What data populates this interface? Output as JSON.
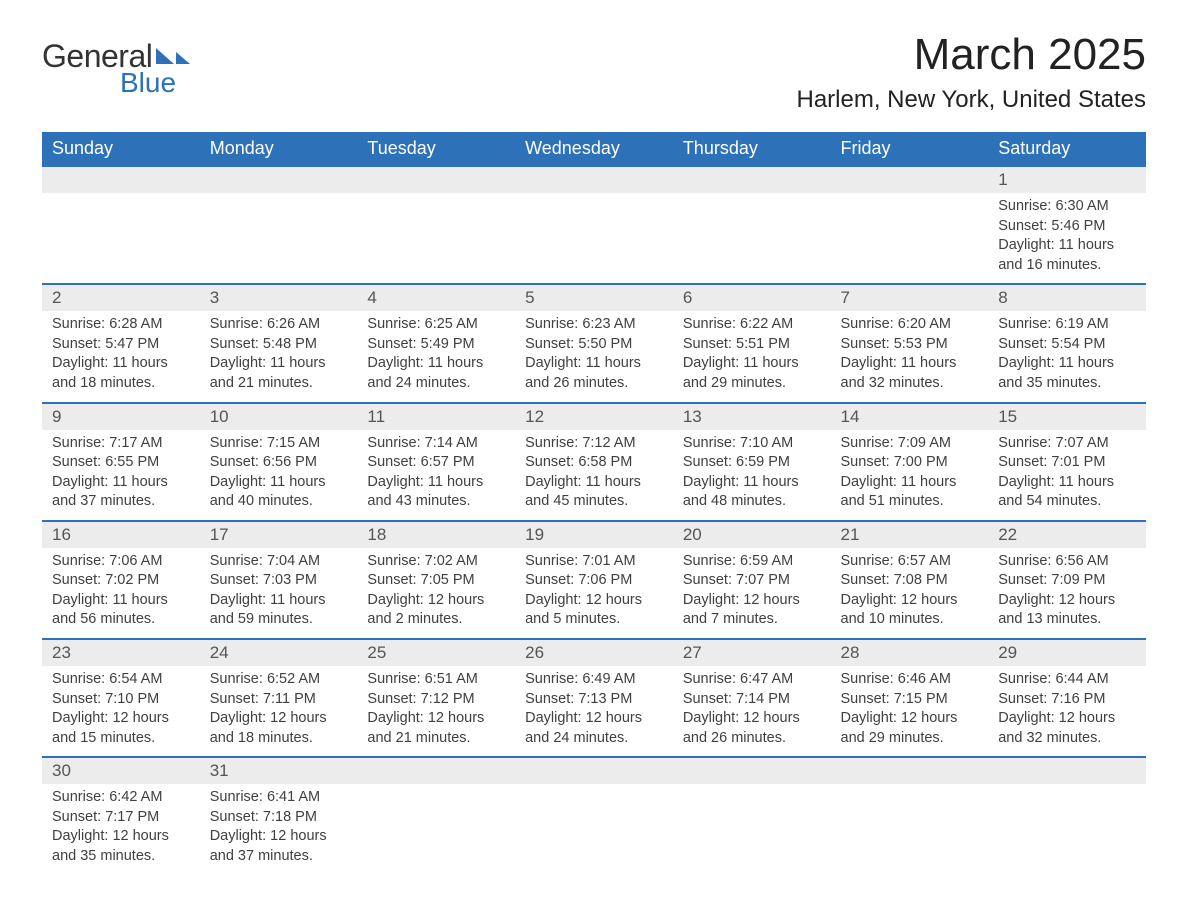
{
  "logo": {
    "text1": "General",
    "text2": "Blue",
    "shape_color": "#2d72b8"
  },
  "title": "March 2025",
  "location": "Harlem, New York, United States",
  "colors": {
    "header_bg": "#2d72b8",
    "header_text": "#ffffff",
    "daynum_bg": "#ececec",
    "week_border": "#2d72b8",
    "body_text": "#404040"
  },
  "typography": {
    "title_fontsize": 44,
    "location_fontsize": 24,
    "header_fontsize": 18,
    "daynum_fontsize": 17,
    "cell_fontsize": 14.5
  },
  "layout": {
    "columns": 7,
    "rows": 6,
    "start_day_index": 6
  },
  "weekdays": [
    "Sunday",
    "Monday",
    "Tuesday",
    "Wednesday",
    "Thursday",
    "Friday",
    "Saturday"
  ],
  "days": [
    {
      "n": "1",
      "sunrise": "6:30 AM",
      "sunset": "5:46 PM",
      "daylight": "11 hours and 16 minutes."
    },
    {
      "n": "2",
      "sunrise": "6:28 AM",
      "sunset": "5:47 PM",
      "daylight": "11 hours and 18 minutes."
    },
    {
      "n": "3",
      "sunrise": "6:26 AM",
      "sunset": "5:48 PM",
      "daylight": "11 hours and 21 minutes."
    },
    {
      "n": "4",
      "sunrise": "6:25 AM",
      "sunset": "5:49 PM",
      "daylight": "11 hours and 24 minutes."
    },
    {
      "n": "5",
      "sunrise": "6:23 AM",
      "sunset": "5:50 PM",
      "daylight": "11 hours and 26 minutes."
    },
    {
      "n": "6",
      "sunrise": "6:22 AM",
      "sunset": "5:51 PM",
      "daylight": "11 hours and 29 minutes."
    },
    {
      "n": "7",
      "sunrise": "6:20 AM",
      "sunset": "5:53 PM",
      "daylight": "11 hours and 32 minutes."
    },
    {
      "n": "8",
      "sunrise": "6:19 AM",
      "sunset": "5:54 PM",
      "daylight": "11 hours and 35 minutes."
    },
    {
      "n": "9",
      "sunrise": "7:17 AM",
      "sunset": "6:55 PM",
      "daylight": "11 hours and 37 minutes."
    },
    {
      "n": "10",
      "sunrise": "7:15 AM",
      "sunset": "6:56 PM",
      "daylight": "11 hours and 40 minutes."
    },
    {
      "n": "11",
      "sunrise": "7:14 AM",
      "sunset": "6:57 PM",
      "daylight": "11 hours and 43 minutes."
    },
    {
      "n": "12",
      "sunrise": "7:12 AM",
      "sunset": "6:58 PM",
      "daylight": "11 hours and 45 minutes."
    },
    {
      "n": "13",
      "sunrise": "7:10 AM",
      "sunset": "6:59 PM",
      "daylight": "11 hours and 48 minutes."
    },
    {
      "n": "14",
      "sunrise": "7:09 AM",
      "sunset": "7:00 PM",
      "daylight": "11 hours and 51 minutes."
    },
    {
      "n": "15",
      "sunrise": "7:07 AM",
      "sunset": "7:01 PM",
      "daylight": "11 hours and 54 minutes."
    },
    {
      "n": "16",
      "sunrise": "7:06 AM",
      "sunset": "7:02 PM",
      "daylight": "11 hours and 56 minutes."
    },
    {
      "n": "17",
      "sunrise": "7:04 AM",
      "sunset": "7:03 PM",
      "daylight": "11 hours and 59 minutes."
    },
    {
      "n": "18",
      "sunrise": "7:02 AM",
      "sunset": "7:05 PM",
      "daylight": "12 hours and 2 minutes."
    },
    {
      "n": "19",
      "sunrise": "7:01 AM",
      "sunset": "7:06 PM",
      "daylight": "12 hours and 5 minutes."
    },
    {
      "n": "20",
      "sunrise": "6:59 AM",
      "sunset": "7:07 PM",
      "daylight": "12 hours and 7 minutes."
    },
    {
      "n": "21",
      "sunrise": "6:57 AM",
      "sunset": "7:08 PM",
      "daylight": "12 hours and 10 minutes."
    },
    {
      "n": "22",
      "sunrise": "6:56 AM",
      "sunset": "7:09 PM",
      "daylight": "12 hours and 13 minutes."
    },
    {
      "n": "23",
      "sunrise": "6:54 AM",
      "sunset": "7:10 PM",
      "daylight": "12 hours and 15 minutes."
    },
    {
      "n": "24",
      "sunrise": "6:52 AM",
      "sunset": "7:11 PM",
      "daylight": "12 hours and 18 minutes."
    },
    {
      "n": "25",
      "sunrise": "6:51 AM",
      "sunset": "7:12 PM",
      "daylight": "12 hours and 21 minutes."
    },
    {
      "n": "26",
      "sunrise": "6:49 AM",
      "sunset": "7:13 PM",
      "daylight": "12 hours and 24 minutes."
    },
    {
      "n": "27",
      "sunrise": "6:47 AM",
      "sunset": "7:14 PM",
      "daylight": "12 hours and 26 minutes."
    },
    {
      "n": "28",
      "sunrise": "6:46 AM",
      "sunset": "7:15 PM",
      "daylight": "12 hours and 29 minutes."
    },
    {
      "n": "29",
      "sunrise": "6:44 AM",
      "sunset": "7:16 PM",
      "daylight": "12 hours and 32 minutes."
    },
    {
      "n": "30",
      "sunrise": "6:42 AM",
      "sunset": "7:17 PM",
      "daylight": "12 hours and 35 minutes."
    },
    {
      "n": "31",
      "sunrise": "6:41 AM",
      "sunset": "7:18 PM",
      "daylight": "12 hours and 37 minutes."
    }
  ],
  "labels": {
    "sunrise": "Sunrise: ",
    "sunset": "Sunset: ",
    "daylight": "Daylight: "
  }
}
